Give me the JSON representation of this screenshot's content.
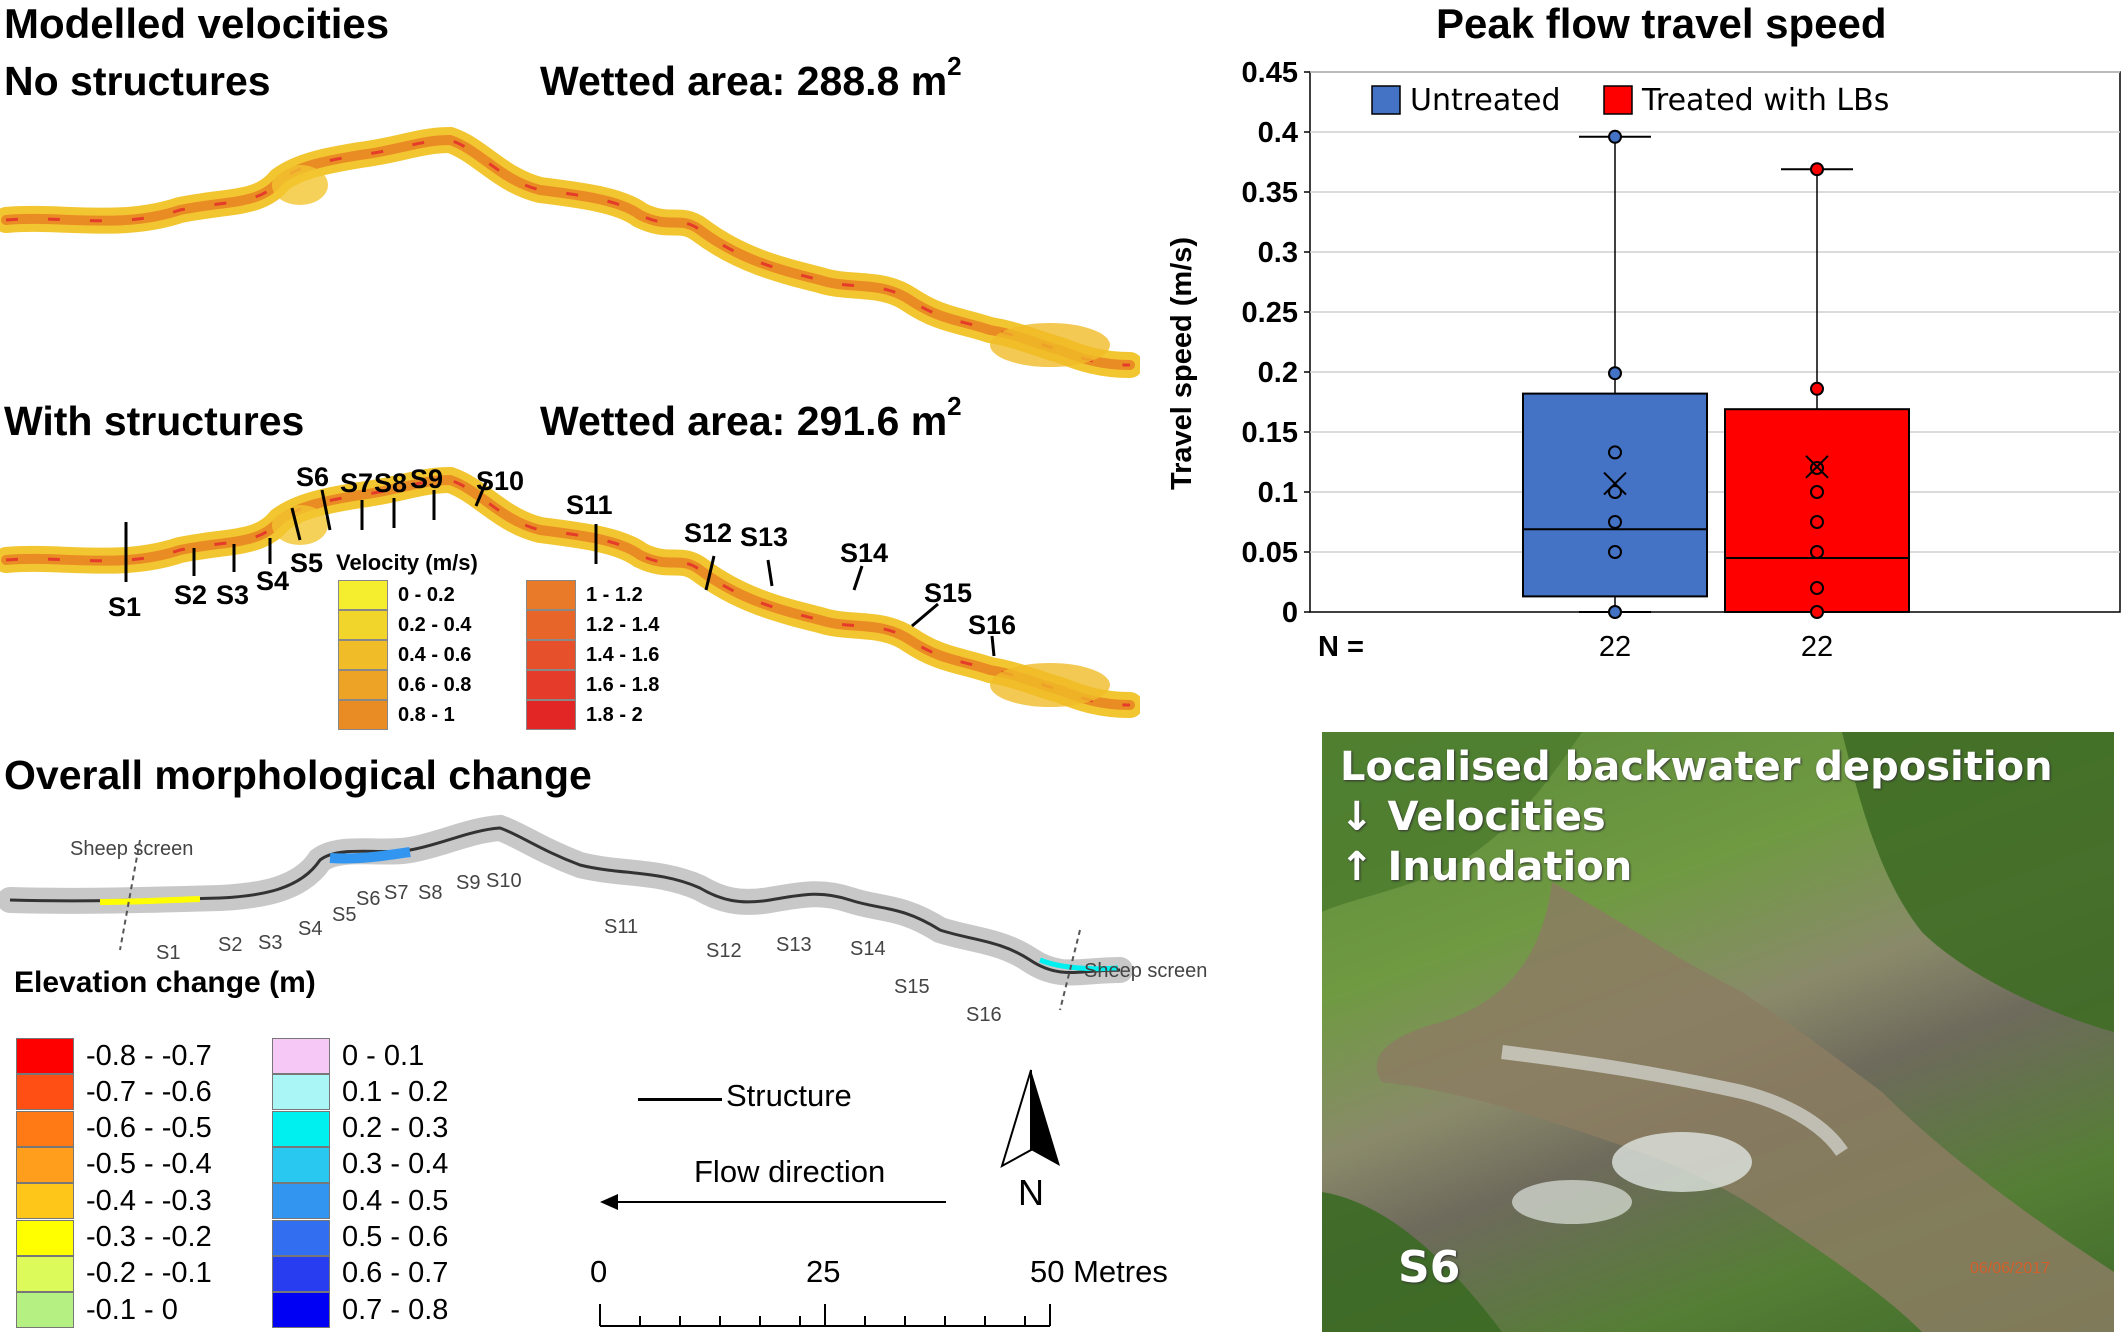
{
  "top_left": {
    "title": "Modelled velocities",
    "no_structures_label": "No structures",
    "wetted_no": "Wetted area: 288.8  m",
    "with_structures_label": "With structures",
    "wetted_with": "Wetted area: 291.6  m",
    "sup2": "2",
    "sites": [
      "S1",
      "S2",
      "S3",
      "S4",
      "S5",
      "S6",
      "S7",
      "S8",
      "S9",
      "S10",
      "S11",
      "S12",
      "S13",
      "S14",
      "S15",
      "S16"
    ],
    "velocity_legend": {
      "title": "Velocity (m/s)",
      "items": [
        {
          "label": "0 - 0.2",
          "color": "#f5ee2e"
        },
        {
          "label": "0.2 - 0.4",
          "color": "#f2d52a"
        },
        {
          "label": "0.4 - 0.6",
          "color": "#f0bc28"
        },
        {
          "label": "0.6 - 0.8",
          "color": "#eda326"
        },
        {
          "label": "0.8 - 1",
          "color": "#ea8c24"
        },
        {
          "label": "1 - 1.2",
          "color": "#e97a2a"
        },
        {
          "label": "1.2 - 1.4",
          "color": "#e8652a"
        },
        {
          "label": "1.4 - 1.6",
          "color": "#e6502a"
        },
        {
          "label": "1.6 - 1.8",
          "color": "#e43b2a"
        },
        {
          "label": "1.8 - 2",
          "color": "#e22626"
        }
      ]
    }
  },
  "morph": {
    "title": "Overall morphological change",
    "sheep_screen": "Sheep screen",
    "elev_title": "Elevation change (m)",
    "elev_items": [
      {
        "label": "-0.8 - -0.7",
        "color": "#ff0000"
      },
      {
        "label": "-0.7 - -0.6",
        "color": "#ff4f14"
      },
      {
        "label": "-0.6 - -0.5",
        "color": "#ff7a14"
      },
      {
        "label": "-0.5 - -0.4",
        "color": "#ff9d1c"
      },
      {
        "label": "-0.4 - -0.3",
        "color": "#ffc61a"
      },
      {
        "label": "-0.3 - -0.2",
        "color": "#ffff00"
      },
      {
        "label": "-0.2 - -0.1",
        "color": "#dcfa5a"
      },
      {
        "label": "-0.1 - 0",
        "color": "#b4f082"
      },
      {
        "label": "0 - 0.1",
        "color": "#f5c8f5"
      },
      {
        "label": "0.1 - 0.2",
        "color": "#aaf5f5"
      },
      {
        "label": "0.2 - 0.3",
        "color": "#00f0f0"
      },
      {
        "label": "0.3 - 0.4",
        "color": "#28c8f0"
      },
      {
        "label": "0.4 - 0.5",
        "color": "#3296f0"
      },
      {
        "label": "0.5 - 0.6",
        "color": "#326ef0"
      },
      {
        "label": "0.6 - 0.7",
        "color": "#283cf0"
      },
      {
        "label": "0.7 - 0.8",
        "color": "#0000f5"
      }
    ],
    "structure_label": "Structure",
    "flow_label": "Flow direction",
    "north": "N",
    "scale": {
      "t0": "0",
      "t25": "25",
      "t50": "50 Metres"
    }
  },
  "photo": {
    "caption1": "Localised backwater deposition",
    "caption2": "↓ Velocities",
    "caption3": "↑ Inundation",
    "site": "S6",
    "datestamp": "06/06/2017"
  },
  "chart_data": {
    "type": "box",
    "title": "Peak flow travel speed",
    "ylabel": "Travel speed (m/s)",
    "xlabel": "",
    "ylim": [
      0,
      0.45
    ],
    "yticks": [
      0,
      0.05,
      0.1,
      0.15,
      0.2,
      0.25,
      0.3,
      0.35,
      0.4,
      0.45
    ],
    "ytick_labels": [
      "0",
      "0.05",
      "0.1",
      "0.15",
      "0.2",
      "0.25",
      "0.3",
      "0.35",
      "0.4",
      "0.45"
    ],
    "grid": true,
    "legend_position": "top",
    "n_label": "N =",
    "series": [
      {
        "name": "Untreated",
        "color": "#4472c4",
        "n": "22",
        "min": 0.0,
        "q1": 0.013,
        "median": 0.069,
        "q3": 0.182,
        "max": 0.396,
        "mean": 0.107,
        "points": [
          0.0,
          0.05,
          0.075,
          0.1,
          0.133,
          0.199,
          0.396
        ]
      },
      {
        "name": "Treated with LBs",
        "color": "#ff0000",
        "n": "22",
        "min": 0.0,
        "q1": 0.0,
        "median": 0.045,
        "q3": 0.169,
        "max": 0.369,
        "mean": 0.121,
        "points": [
          0.0,
          0.02,
          0.05,
          0.075,
          0.1,
          0.12,
          0.186,
          0.369
        ]
      }
    ]
  }
}
